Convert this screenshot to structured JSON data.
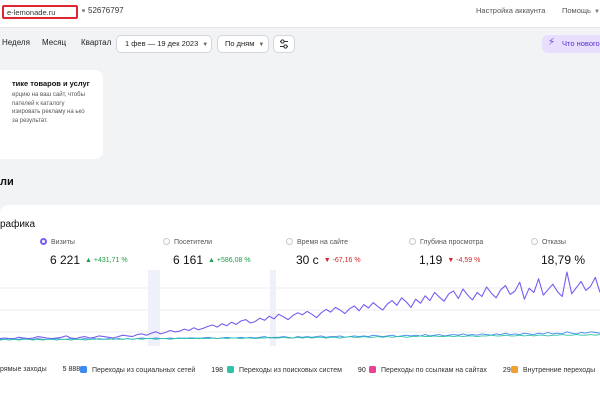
{
  "topbar": {
    "site": "e-lemonade.ru",
    "counter_id": "52676797",
    "account_settings": "Настройка аккаунта",
    "help": "Помощь"
  },
  "filters": {
    "week": "Неделя",
    "month": "Месяц",
    "quarter": "Квартал",
    "date_range": "1 фев — 19 дек 2023",
    "grouping": "По дням",
    "whats_new": "Что нового"
  },
  "promo": {
    "title": "тике товаров и услуг",
    "text": "ерцию на ваш сайт, чтобы пателей к каталогу изировать рекламу на ько за результат."
  },
  "section_title": "ли",
  "panel_title": "рафика",
  "metrics": [
    {
      "label": "Визиты",
      "value": "6 221",
      "delta": "+431,71 %",
      "direction": "up",
      "selected": true
    },
    {
      "label": "Посетители",
      "value": "6 161",
      "delta": "+586,08 %",
      "direction": "up",
      "selected": false
    },
    {
      "label": "Время на сайте",
      "value": "30 с",
      "delta": "-67,16 %",
      "direction": "down",
      "selected": false
    },
    {
      "label": "Глубина просмотра",
      "value": "1,19",
      "delta": "-4,59 %",
      "direction": "down",
      "selected": false
    },
    {
      "label": "Отказы",
      "value": "18,79 %",
      "delta": "",
      "direction": "",
      "selected": false
    }
  ],
  "legend": [
    {
      "label": "рямые заходы",
      "value": "5 888",
      "color": "#7b5cf0"
    },
    {
      "label": "Переходы из социальных сетей",
      "value": "198",
      "color": "#3d8bf0"
    },
    {
      "label": "Переходы из поисковых систем",
      "value": "90",
      "color": "#2fc4a8"
    },
    {
      "label": "Переходы по ссылкам на сайтах",
      "value": "29",
      "color": "#e84393"
    },
    {
      "label": "Внутренние переходы",
      "value": "",
      "color": "#f0a030"
    }
  ],
  "chart_data": {
    "type": "line",
    "series": [
      {
        "color": "#7b5cf0",
        "values": [
          2,
          3,
          2,
          2,
          4,
          3,
          2,
          3,
          5,
          4,
          3,
          2,
          3,
          4,
          6,
          3,
          2,
          4,
          5,
          3,
          4,
          6,
          5,
          4,
          3,
          5,
          7,
          6,
          5,
          8,
          9,
          7,
          10,
          12,
          9,
          11,
          14,
          12,
          13,
          16,
          14,
          18,
          15,
          17,
          20,
          22,
          19,
          24,
          21,
          26,
          23,
          28,
          30,
          25,
          27,
          32,
          29,
          35,
          31,
          38,
          34,
          30,
          36,
          40,
          37,
          42,
          38,
          33,
          40,
          45,
          41,
          48,
          44,
          39,
          46,
          50,
          43,
          52,
          47,
          55,
          49,
          44,
          53,
          58,
          51,
          62,
          56,
          48,
          60,
          54,
          65,
          58,
          70,
          63,
          57,
          68,
          72,
          61,
          75,
          66,
          59,
          70,
          64,
          78,
          69,
          62,
          74,
          80,
          67,
          72,
          85,
          60,
          76,
          70,
          90,
          66,
          74,
          82,
          71,
          64,
          100,
          68,
          77,
          86,
          73,
          79,
          92,
          70
        ]
      },
      {
        "color": "#3d8bf0",
        "values": [
          1,
          1,
          2,
          1,
          1,
          2,
          1,
          1,
          2,
          1,
          1,
          1,
          2,
          1,
          1,
          2,
          1,
          1,
          2,
          1,
          2,
          1,
          1,
          2,
          1,
          2,
          1,
          2,
          1,
          2,
          3,
          2,
          2,
          3,
          2,
          2,
          3,
          2,
          3,
          2,
          3,
          3,
          2,
          3,
          4,
          3,
          2,
          3,
          4,
          3,
          3,
          4,
          3,
          4,
          3,
          4,
          5,
          3,
          4,
          4,
          5,
          4,
          3,
          5,
          4,
          5,
          4,
          5,
          6,
          4,
          5,
          5,
          6,
          4,
          5,
          6,
          5,
          6,
          5,
          7,
          6,
          5,
          6,
          7,
          5,
          6,
          7,
          6,
          7,
          6,
          8,
          6,
          7,
          8,
          6,
          7,
          8,
          7,
          9,
          7,
          8,
          7,
          9,
          8,
          7,
          9,
          8,
          10,
          8,
          9,
          8,
          10,
          9,
          8,
          10,
          9,
          11,
          9,
          10,
          9,
          12,
          10,
          9,
          11,
          10,
          12,
          11,
          10
        ]
      },
      {
        "color": "#2fc4a8",
        "values": [
          0,
          1,
          0,
          1,
          0,
          1,
          1,
          0,
          1,
          0,
          1,
          1,
          0,
          1,
          1,
          0,
          1,
          1,
          0,
          1,
          1,
          2,
          1,
          1,
          2,
          1,
          1,
          2,
          1,
          2,
          1,
          2,
          2,
          1,
          2,
          2,
          1,
          2,
          2,
          3,
          2,
          2,
          3,
          2,
          2,
          3,
          2,
          3,
          2,
          3,
          3,
          2,
          3,
          3,
          2,
          3,
          3,
          4,
          3,
          3,
          4,
          3,
          3,
          4,
          3,
          4,
          3,
          4,
          4,
          3,
          4,
          4,
          3,
          4,
          5,
          4,
          4,
          5,
          4,
          4,
          5,
          4,
          5,
          4,
          5,
          5,
          4,
          5,
          5,
          6,
          5,
          5,
          6,
          5,
          5,
          6,
          5,
          6,
          5,
          6,
          6,
          5,
          6,
          6,
          7,
          6,
          6,
          7,
          6,
          6,
          7,
          6,
          7,
          6,
          7,
          7,
          6,
          7,
          7,
          8,
          7,
          7,
          8,
          7,
          7,
          8,
          7,
          8
        ]
      }
    ]
  }
}
